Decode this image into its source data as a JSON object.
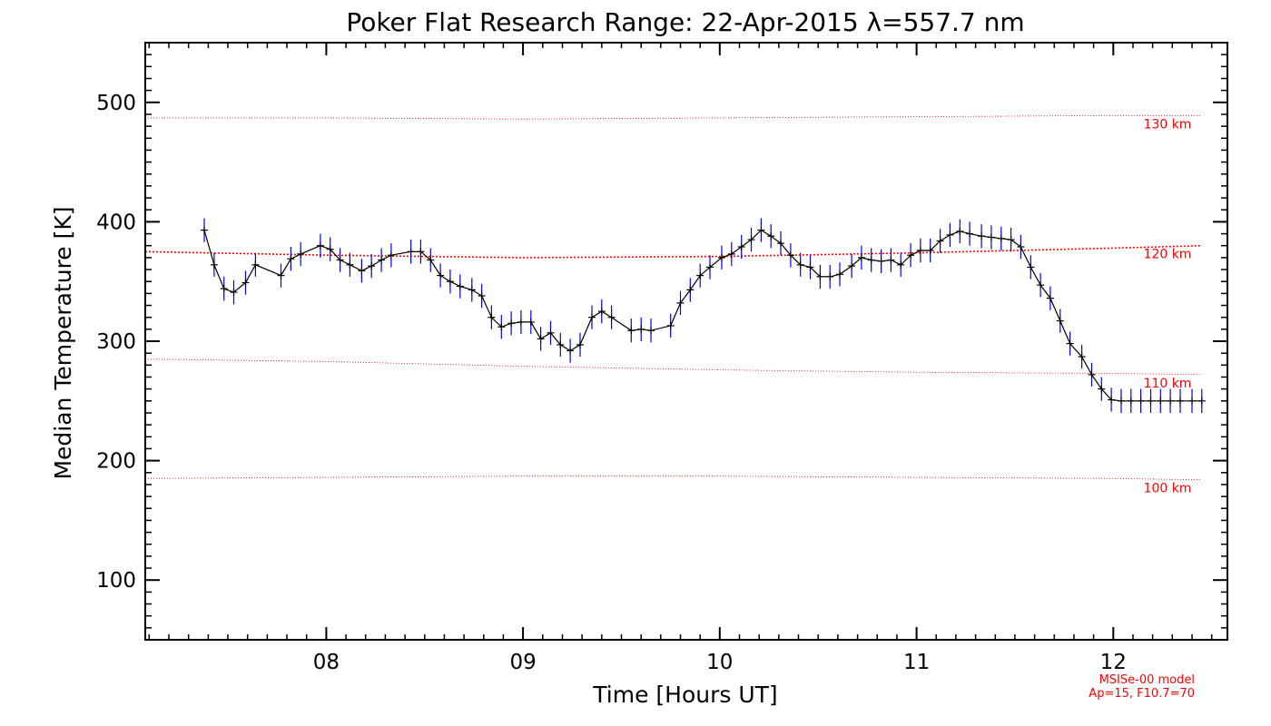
{
  "chart_data": {
    "type": "line",
    "title": "Poker Flat Research Range: 22-Apr-2015 λ=557.7 nm",
    "xlabel": "Time [Hours UT]",
    "ylabel": "Median Temperature [K]",
    "xlim": [
      7.08,
      12.58
    ],
    "ylim": [
      50,
      550
    ],
    "x_ticks": [
      8,
      9,
      10,
      11,
      12
    ],
    "x_tick_labels": [
      "08",
      "09",
      "10",
      "11",
      "12"
    ],
    "y_ticks": [
      100,
      200,
      300,
      400,
      500
    ],
    "y_tick_labels": [
      "100",
      "200",
      "300",
      "400",
      "500"
    ],
    "x_minor_step": 0.1,
    "y_minor_step": 10,
    "grid": false,
    "series": [
      {
        "color": "#000000",
        "error_color": "#0000ff",
        "marker": "plus",
        "error": 10,
        "x": [
          7.38,
          7.43,
          7.48,
          7.53,
          7.59,
          7.64,
          7.77,
          7.82,
          7.87,
          7.97,
          8.02,
          8.07,
          8.12,
          8.18,
          8.23,
          8.28,
          8.33,
          8.43,
          8.48,
          8.53,
          8.58,
          8.63,
          8.68,
          8.74,
          8.79,
          8.84,
          8.89,
          8.94,
          8.99,
          9.04,
          9.09,
          9.14,
          9.19,
          9.24,
          9.29,
          9.35,
          9.4,
          9.45,
          9.55,
          9.6,
          9.65,
          9.75,
          9.8,
          9.85,
          9.9,
          9.95,
          10.01,
          10.06,
          10.11,
          10.16,
          10.21,
          10.26,
          10.31,
          10.36,
          10.41,
          10.46,
          10.51,
          10.56,
          10.61,
          10.67,
          10.72,
          10.77,
          10.82,
          10.87,
          10.92,
          10.97,
          11.02,
          11.07,
          11.12,
          11.17,
          11.22,
          11.27,
          11.33,
          11.38,
          11.43,
          11.48,
          11.53,
          11.58,
          11.63,
          11.68,
          11.73,
          11.78,
          11.84,
          11.89,
          11.94,
          11.99,
          12.04,
          12.09,
          12.14,
          12.19,
          12.24,
          12.29,
          12.34,
          12.4,
          12.45
        ],
        "y": [
          393,
          364,
          344,
          341,
          349,
          364,
          355,
          369,
          373,
          380,
          377,
          368,
          364,
          359,
          363,
          368,
          372,
          375,
          375,
          368,
          355,
          350,
          346,
          343,
          338,
          320,
          312,
          315,
          316,
          316,
          302,
          307,
          297,
          292,
          297,
          320,
          325,
          320,
          309,
          310,
          309,
          313,
          332,
          343,
          355,
          362,
          370,
          373,
          379,
          385,
          393,
          388,
          382,
          372,
          364,
          362,
          354,
          354,
          356,
          363,
          370,
          368,
          367,
          368,
          364,
          372,
          376,
          376,
          384,
          389,
          392,
          390,
          388,
          387,
          386,
          385,
          379,
          362,
          347,
          336,
          317,
          298,
          287,
          272,
          260,
          251,
          250,
          250,
          250,
          250,
          250,
          250,
          250,
          250,
          250
        ]
      }
    ],
    "model_curves": [
      {
        "label": "130 km",
        "color": "#ff0000",
        "x": [
          7.08,
          8.0,
          9.0,
          10.0,
          11.0,
          12.0,
          12.45
        ],
        "y": [
          487,
          487,
          486,
          487,
          488,
          489,
          489
        ]
      },
      {
        "label": "120 km",
        "color": "#ff0000",
        "x": [
          7.08,
          8.0,
          9.0,
          10.0,
          11.0,
          12.0,
          12.45
        ],
        "y": [
          375,
          372,
          370,
          371,
          374,
          378,
          380
        ]
      },
      {
        "label": "110 km",
        "color": "#ff0000",
        "x": [
          7.08,
          8.0,
          9.0,
          10.0,
          11.0,
          12.0,
          12.45
        ],
        "y": [
          285,
          283,
          279,
          276,
          274,
          273,
          272
        ]
      },
      {
        "label": "100 km",
        "color": "#ff0000",
        "x": [
          7.08,
          8.0,
          9.0,
          10.0,
          11.0,
          12.0,
          12.45
        ],
        "y": [
          185,
          186,
          187,
          187,
          186,
          185,
          184
        ]
      }
    ],
    "model_note": [
      "MSISe-00 model",
      "Ap=15, F10.7=70"
    ]
  }
}
